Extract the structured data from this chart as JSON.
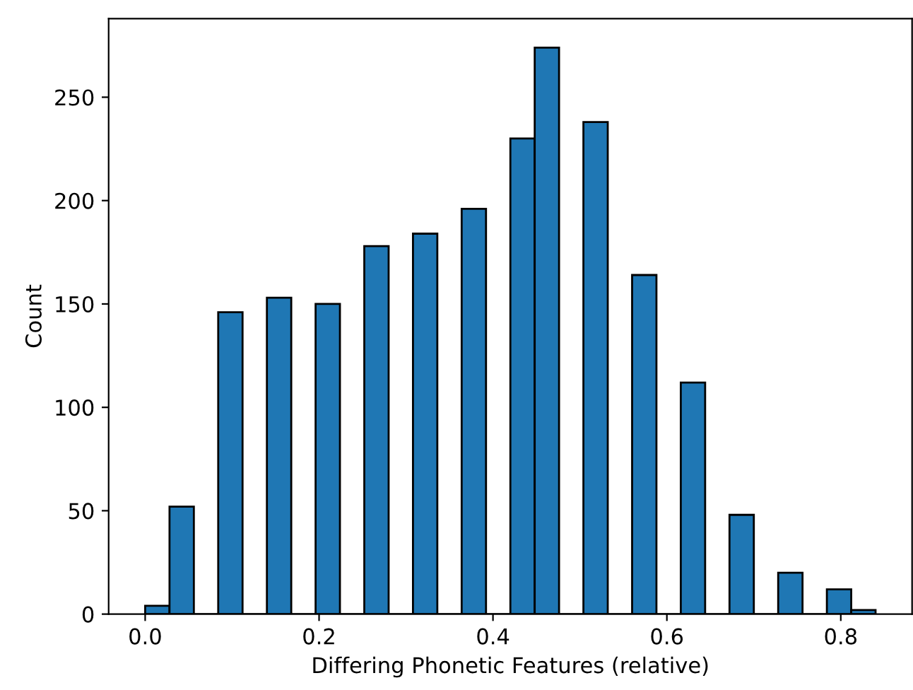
{
  "chart_data": {
    "type": "histogram",
    "xlabel": "Differing Phonetic Features (relative)",
    "ylabel": "Count",
    "bins": [
      0.0,
      0.028,
      0.056,
      0.084,
      0.112,
      0.14,
      0.168,
      0.196,
      0.224,
      0.252,
      0.28,
      0.308,
      0.336,
      0.364,
      0.392,
      0.42,
      0.448,
      0.476,
      0.504,
      0.532,
      0.56,
      0.588,
      0.616,
      0.644,
      0.672,
      0.7,
      0.728,
      0.756,
      0.784,
      0.812,
      0.84
    ],
    "values": [
      4,
      52,
      0,
      146,
      0,
      153,
      0,
      150,
      0,
      178,
      0,
      184,
      0,
      196,
      0,
      230,
      274,
      0,
      238,
      0,
      164,
      0,
      112,
      0,
      48,
      0,
      20,
      0,
      12,
      2
    ],
    "color": "#1f77b4",
    "xlim": [
      -0.042,
      0.882
    ],
    "xticks": [
      {
        "value": 0,
        "label": "0.0"
      },
      0.2,
      0.4,
      0.6,
      0.8
    ],
    "ylim": [
      0,
      288
    ],
    "yticks": [
      0,
      50,
      100,
      150,
      200,
      250
    ],
    "grid": false
  }
}
